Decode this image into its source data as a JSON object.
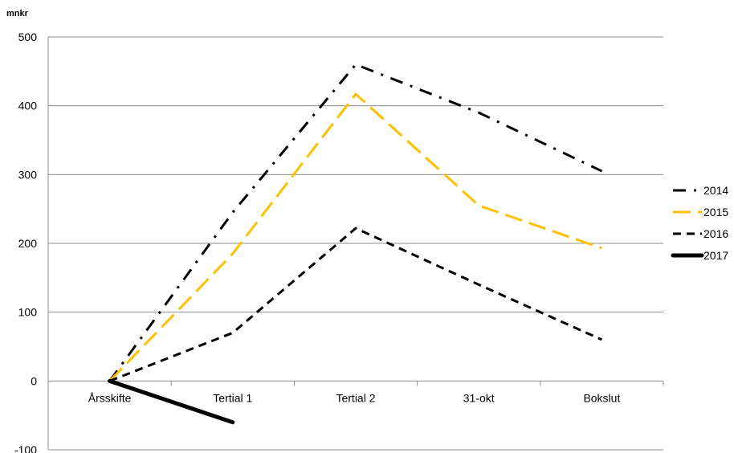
{
  "chart_data": {
    "type": "line",
    "unit_label": "mnkr",
    "categories": [
      "Årsskifte",
      "Tertial 1",
      "Tertial 2",
      "31-okt",
      "Bokslut"
    ],
    "ylim": [
      -100,
      500
    ],
    "yticks": [
      -100,
      0,
      100,
      200,
      300,
      400,
      500
    ],
    "grid": true,
    "legend": "right",
    "series": [
      {
        "name": "2014",
        "values": [
          0,
          245,
          460,
          390,
          305
        ],
        "color": "#000000",
        "style": "dash-dot"
      },
      {
        "name": "2015",
        "values": [
          0,
          185,
          417,
          255,
          193
        ],
        "color": "#FFC000",
        "style": "long-dash"
      },
      {
        "name": "2016",
        "values": [
          0,
          70,
          222,
          140,
          60
        ],
        "color": "#000000",
        "style": "dash"
      },
      {
        "name": "2017",
        "values": [
          0,
          -60,
          null,
          null,
          null
        ],
        "color": "#000000",
        "style": "solid-thick"
      }
    ]
  }
}
